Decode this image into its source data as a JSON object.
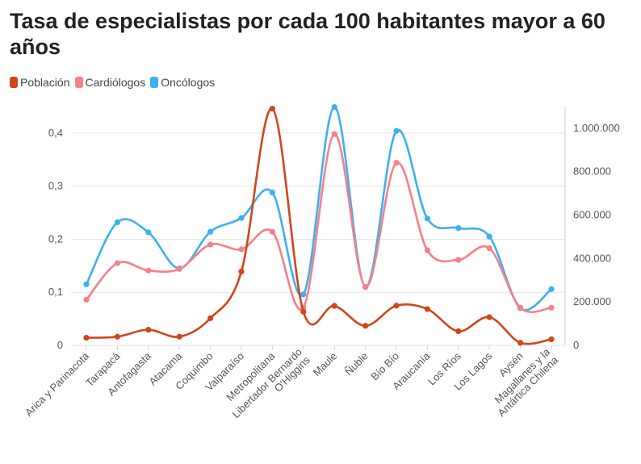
{
  "chart_data": {
    "type": "line",
    "title": "Tasa de especialistas por cada 100 habitantes mayor a 60 años",
    "categories": [
      "Arica y Parinacota",
      "Tarapacá",
      "Antofagasta",
      "Atacama",
      "Coquimbo",
      "Valparaíso",
      "Metropolitana",
      "Libertador Bernardo O'Higgins",
      "Maule",
      "Ñuble",
      "Bío Bío",
      "Araucanía",
      "Los Ríos",
      "Los Lagos",
      "Aysén",
      "Magallanes y la Antártica Chilena"
    ],
    "category_display": [
      [
        "Arica y Parinacota"
      ],
      [
        "Tarapacá"
      ],
      [
        "Antofagasta"
      ],
      [
        "Atacama"
      ],
      [
        "Coquimbo"
      ],
      [
        "Valparaíso"
      ],
      [
        "Metropolitana"
      ],
      [
        "Libertador Bernardo",
        "O'Higgins"
      ],
      [
        "Maule"
      ],
      [
        "Ñuble"
      ],
      [
        "Bío Bío"
      ],
      [
        "Araucanía"
      ],
      [
        "Los Ríos"
      ],
      [
        "Los Lagos"
      ],
      [
        "Aysén"
      ],
      [
        "Magallanes y la",
        "Antártica Chilena"
      ]
    ],
    "y_left": {
      "ticks": [
        "0",
        "0,1",
        "0,2",
        "0,3",
        "0,4"
      ],
      "min": 0,
      "max": 0.45
    },
    "y_right": {
      "ticks": [
        "0",
        "200.000",
        "400.000",
        "600.000",
        "800.000",
        "1.000.000"
      ],
      "min": 0,
      "max": 1100000
    },
    "grid": true,
    "legend_position": "top-left",
    "series": [
      {
        "name": "Población",
        "color": "#d1451a",
        "axis": "right",
        "values": [
          35000,
          40000,
          72000,
          40000,
          125000,
          340000,
          1090000,
          155000,
          182000,
          90000,
          183000,
          167000,
          65000,
          130000,
          12000,
          28000
        ]
      },
      {
        "name": "Cardiólogos",
        "color": "#f77f86",
        "axis": "left",
        "values": [
          0.086,
          0.155,
          0.141,
          0.144,
          0.19,
          0.181,
          0.214,
          0.071,
          0.398,
          0.11,
          0.344,
          0.179,
          0.161,
          0.183,
          0.071,
          0.071
        ]
      },
      {
        "name": "Oncólogos",
        "color": "#3cb0f0",
        "axis": "left",
        "values": [
          0.115,
          0.232,
          0.213,
          0.145,
          0.214,
          0.24,
          0.288,
          0.096,
          0.449,
          0.11,
          0.404,
          0.239,
          0.221,
          0.205,
          0.07,
          0.106
        ]
      }
    ]
  }
}
